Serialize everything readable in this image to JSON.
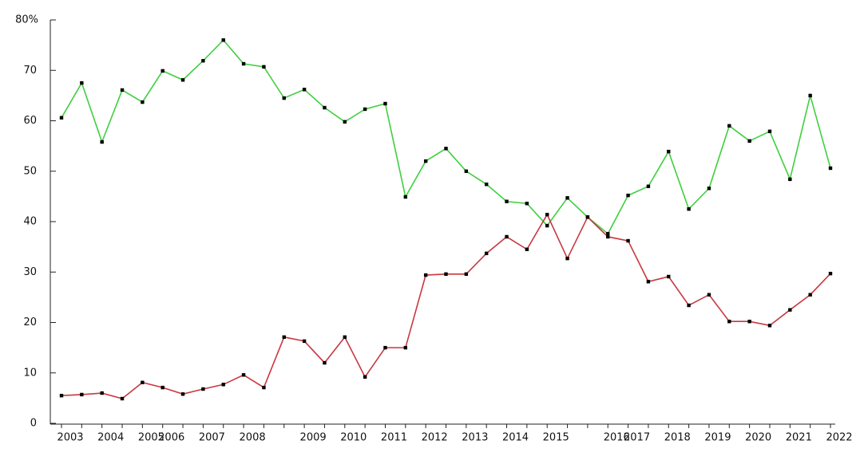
{
  "chart_data": {
    "type": "line",
    "categories": [
      "2003",
      null,
      "2004",
      null,
      "2005",
      "2006",
      null,
      "2007",
      null,
      "2008",
      null,
      null,
      "2009",
      null,
      "2010",
      null,
      "2011",
      null,
      "2012",
      null,
      "2013",
      null,
      "2014",
      null,
      "2015",
      null,
      null,
      "2016",
      "2017",
      null,
      "2018",
      null,
      "2019",
      null,
      "2020",
      null,
      "2021",
      null,
      "2022"
    ],
    "series": [
      {
        "color": "#3fcf3f",
        "values": [
          60.6,
          67.5,
          55.8,
          66.1,
          63.7,
          69.9,
          68.1,
          71.9,
          76.0,
          71.3,
          70.7,
          64.5,
          66.2,
          62.6,
          59.8,
          62.3,
          63.4,
          44.9,
          52.0,
          54.5,
          50.0,
          47.4,
          44.0,
          43.6,
          39.2,
          44.7,
          40.9,
          37.6,
          45.2,
          47.0,
          53.9,
          42.5,
          46.6,
          59.0,
          56.0,
          57.9,
          48.4,
          65.0,
          50.6
        ]
      },
      {
        "color": "#c8383f",
        "values": [
          5.5,
          5.7,
          6.0,
          4.9,
          8.1,
          7.1,
          5.8,
          6.8,
          7.7,
          9.6,
          7.1,
          17.1,
          16.3,
          12.0,
          17.1,
          9.2,
          15.0,
          15.0,
          29.4,
          29.6,
          29.6,
          33.7,
          37.0,
          34.5,
          41.4,
          32.7,
          40.9,
          37.0,
          36.2,
          28.1,
          29.1,
          23.4,
          25.5,
          20.2,
          20.2,
          19.4,
          22.5,
          25.5,
          29.7
        ]
      }
    ],
    "ylim": [
      0,
      80
    ],
    "yticks": [
      0,
      10,
      20,
      30,
      40,
      50,
      60,
      70,
      {
        "value": 80,
        "label": "80%"
      }
    ]
  }
}
